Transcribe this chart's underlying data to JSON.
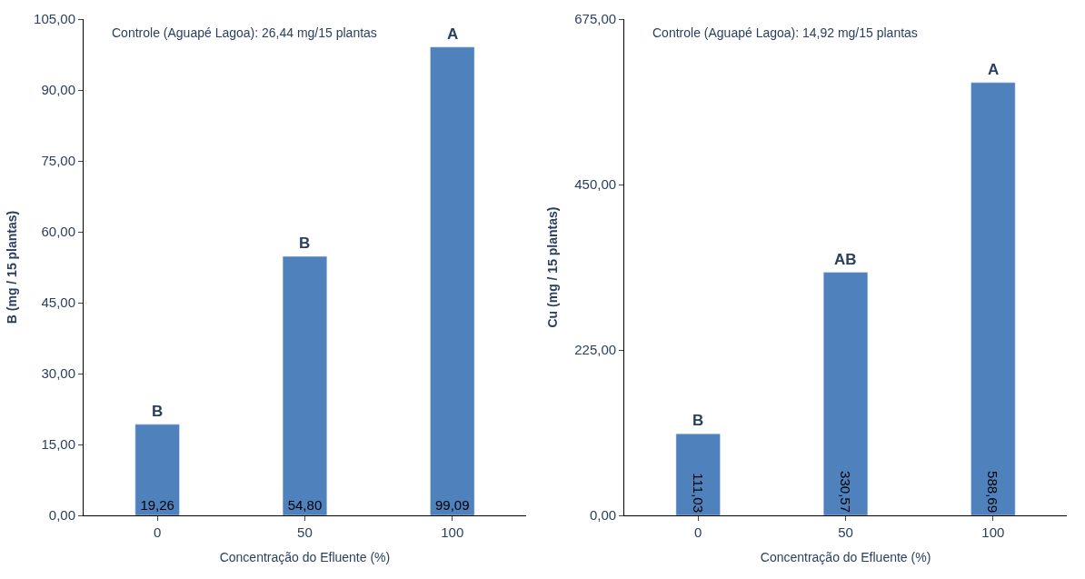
{
  "chart_data": [
    {
      "type": "bar",
      "xlabel": "Concentração do Efluente (%)",
      "ylabel": "B (mg / 15 plantas)",
      "categories": [
        "0",
        "50",
        "100"
      ],
      "series": [
        {
          "color": "#4f81bd",
          "values": [
            19.26,
            54.8,
            99.09
          ],
          "value_labels": [
            "19,26",
            "54,80",
            "99,09"
          ]
        }
      ],
      "ylim": [
        0,
        105
      ],
      "yticks": [
        {
          "value": 0,
          "label": "0,00"
        },
        {
          "value": 15,
          "label": "15,00"
        },
        {
          "value": 30,
          "label": "30,00"
        },
        {
          "value": 45,
          "label": "45,00"
        },
        {
          "value": 60,
          "label": "60,00"
        },
        {
          "value": 75,
          "label": "75,00"
        },
        {
          "value": 90,
          "label": "90,00"
        },
        {
          "value": 105,
          "label": "105,00"
        }
      ],
      "annotations": [
        "Controle (Aguapé Lagoa): 26,44 mg/15 plantas",
        {
          "text": "B",
          "x": "0",
          "y": 19.26
        },
        {
          "text": "B",
          "x": "50",
          "y": 54.8
        },
        {
          "text": "A",
          "x": "100",
          "y": 99.09
        }
      ]
    },
    {
      "type": "bar",
      "xlabel": "Concentração do Efluente (%)",
      "ylabel": "Cu (mg / 15 plantas)",
      "categories": [
        "0",
        "50",
        "100"
      ],
      "series": [
        {
          "color": "#4f81bd",
          "values": [
            111.03,
            330.57,
            588.69
          ],
          "value_labels": [
            "111,03",
            "330,57",
            "588,69"
          ]
        }
      ],
      "ylim": [
        0,
        675
      ],
      "yticks": [
        {
          "value": 0,
          "label": "0,00"
        },
        {
          "value": 225,
          "label": "225,00"
        },
        {
          "value": 450,
          "label": "450,00"
        },
        {
          "value": 675,
          "label": "675,00"
        }
      ],
      "annotations": [
        "Controle (Aguapé Lagoa): 14,92 mg/15 plantas",
        {
          "text": "B",
          "x": "0",
          "y": 111.03
        },
        {
          "text": "AB",
          "x": "50",
          "y": 330.57
        },
        {
          "text": "A",
          "x": "100",
          "y": 588.69
        }
      ]
    }
  ]
}
